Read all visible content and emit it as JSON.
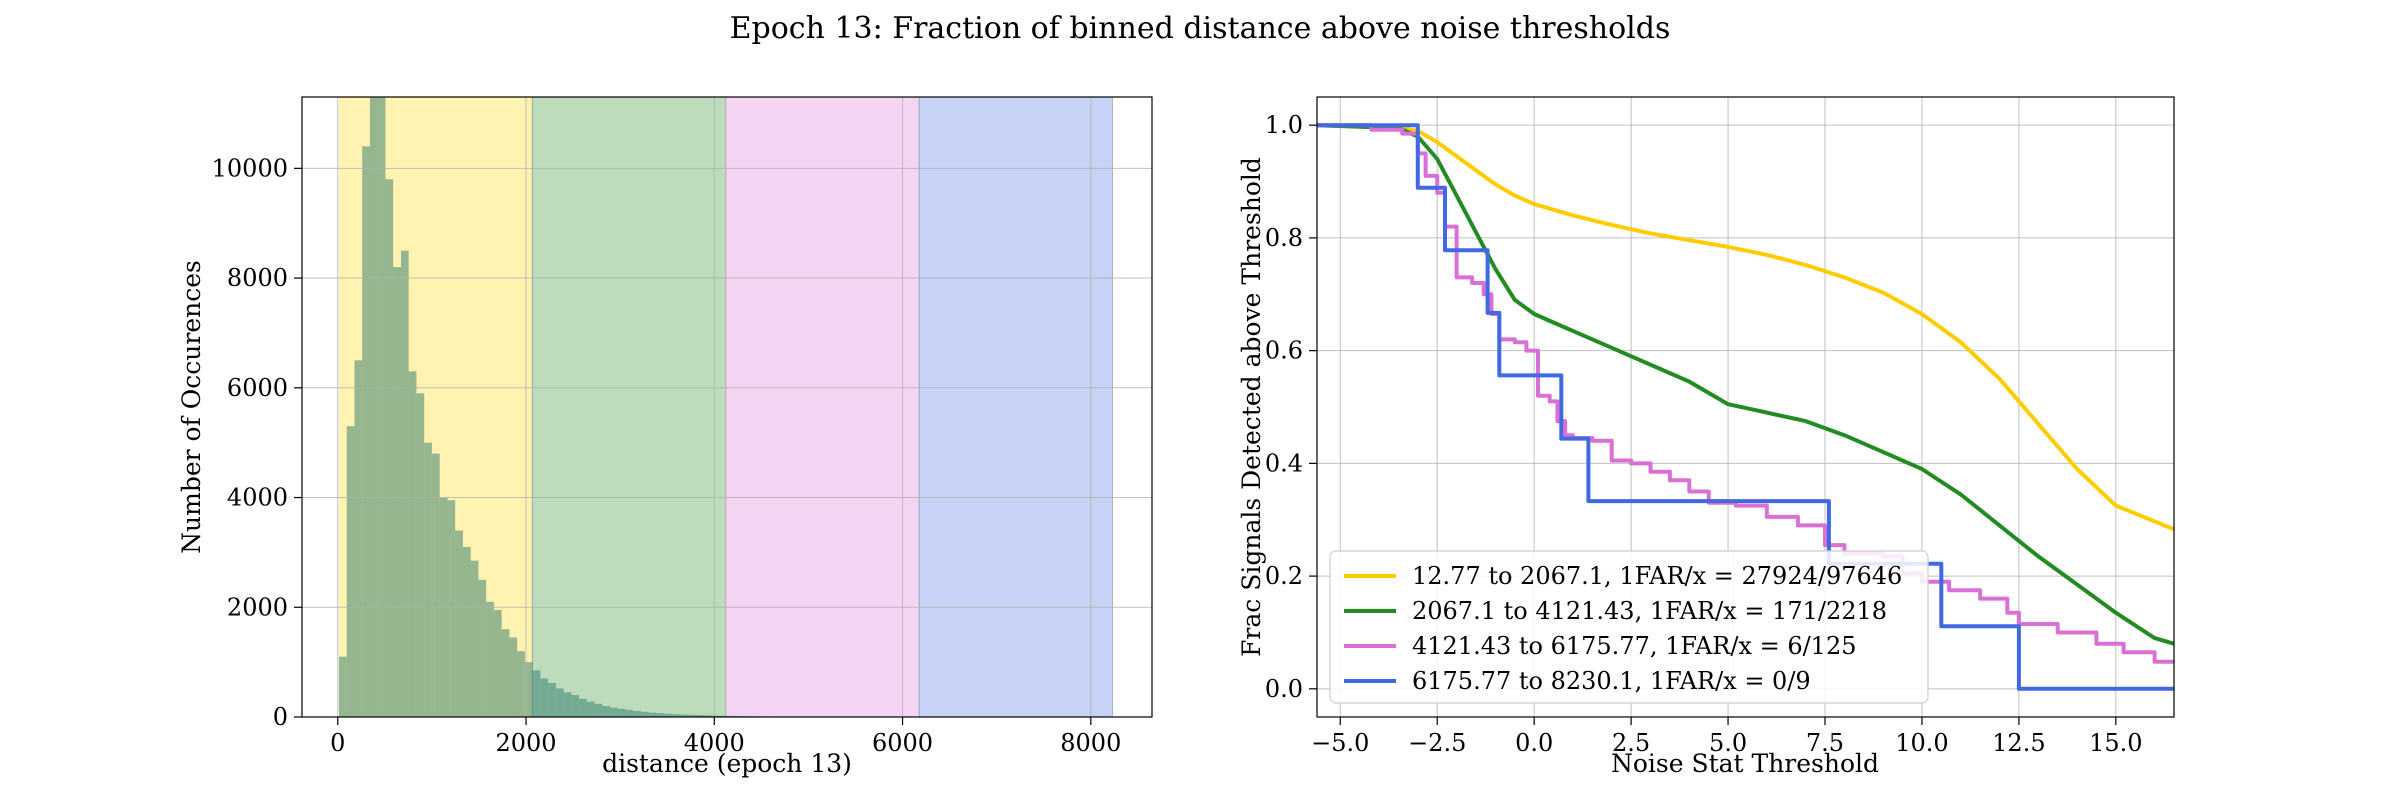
{
  "figure": {
    "title": "Epoch 13: Fraction of binned distance above noise thresholds"
  },
  "chart_data": [
    {
      "type": "bar",
      "xlabel": "distance (epoch 13)",
      "ylabel": "Number of Occurences",
      "xlim": [
        -380,
        8650
      ],
      "ylim": [
        0,
        11300
      ],
      "xticks": [
        0,
        2000,
        4000,
        6000,
        8000
      ],
      "yticks": [
        0,
        2000,
        4000,
        6000,
        8000,
        10000
      ],
      "grid": true,
      "bands": [
        {
          "from": 12.77,
          "to": 2067.1,
          "color": "#FFD700"
        },
        {
          "from": 2067.1,
          "to": 4121.43,
          "color": "#228B22"
        },
        {
          "from": 4121.43,
          "to": 6175.77,
          "color": "#DA70D6"
        },
        {
          "from": 6175.77,
          "to": 8230.1,
          "color": "#4169E1"
        }
      ],
      "histogram": {
        "bin_start": 12.77,
        "bin_width": 82.3,
        "color": "#2E7A6E",
        "counts": [
          1100,
          5300,
          6500,
          10400,
          11300,
          11300,
          9800,
          8200,
          8500,
          6300,
          5900,
          5000,
          4800,
          4000,
          3950,
          3400,
          3100,
          2850,
          2500,
          2100,
          1950,
          1600,
          1450,
          1200,
          1000,
          850,
          700,
          620,
          520,
          450,
          400,
          330,
          280,
          240,
          200,
          170,
          150,
          130,
          110,
          95,
          80,
          70,
          60,
          50,
          45,
          40,
          35,
          30,
          25,
          22,
          20,
          18,
          15,
          13,
          11,
          10,
          9,
          8,
          7,
          6,
          5,
          5,
          4,
          4,
          3,
          3,
          3,
          2,
          2,
          2
        ]
      }
    },
    {
      "type": "line",
      "xlabel": "Noise Stat Threshold",
      "ylabel": "Frac Signals Detected above Threshold",
      "xlim": [
        -5.6,
        16.5
      ],
      "ylim": [
        -0.05,
        1.05
      ],
      "xticks": [
        -5.0,
        -2.5,
        0.0,
        2.5,
        5.0,
        7.5,
        10.0,
        12.5,
        15.0
      ],
      "xtick_labels": [
        "−5.0",
        "−2.5",
        "0.0",
        "2.5",
        "5.0",
        "7.5",
        "10.0",
        "12.5",
        "15.0"
      ],
      "yticks": [
        0.0,
        0.2,
        0.4,
        0.6,
        0.8,
        1.0
      ],
      "ytick_labels": [
        "0.0",
        "0.2",
        "0.4",
        "0.6",
        "0.8",
        "1.0"
      ],
      "grid": true,
      "legend_position": "lower-left",
      "series": [
        {
          "name": "12.77 to 2067.1, 1FAR/x = 27924/97646",
          "color": "#FFCC00",
          "step": false,
          "points": [
            [
              -5.6,
              1.0
            ],
            [
              -3.5,
              0.995
            ],
            [
              -3.0,
              0.99
            ],
            [
              -2.5,
              0.97
            ],
            [
              -2.0,
              0.945
            ],
            [
              -1.5,
              0.92
            ],
            [
              -1.0,
              0.895
            ],
            [
              -0.5,
              0.875
            ],
            [
              0.0,
              0.86
            ],
            [
              0.5,
              0.85
            ],
            [
              1.0,
              0.84
            ],
            [
              2.0,
              0.823
            ],
            [
              3.0,
              0.808
            ],
            [
              4.0,
              0.796
            ],
            [
              5.0,
              0.784
            ],
            [
              6.0,
              0.77
            ],
            [
              7.0,
              0.752
            ],
            [
              8.0,
              0.73
            ],
            [
              9.0,
              0.703
            ],
            [
              10.0,
              0.665
            ],
            [
              11.0,
              0.615
            ],
            [
              12.0,
              0.55
            ],
            [
              13.0,
              0.47
            ],
            [
              14.0,
              0.39
            ],
            [
              15.0,
              0.325
            ],
            [
              16.5,
              0.283
            ]
          ]
        },
        {
          "name": "2067.1 to 4121.43, 1FAR/x = 171/2218",
          "color": "#228B22",
          "step": false,
          "points": [
            [
              -5.6,
              1.0
            ],
            [
              -3.5,
              0.995
            ],
            [
              -3.0,
              0.98
            ],
            [
              -2.5,
              0.94
            ],
            [
              -2.0,
              0.875
            ],
            [
              -1.5,
              0.81
            ],
            [
              -1.0,
              0.745
            ],
            [
              -0.5,
              0.69
            ],
            [
              0.0,
              0.665
            ],
            [
              0.5,
              0.65
            ],
            [
              1.0,
              0.635
            ],
            [
              2.0,
              0.605
            ],
            [
              3.0,
              0.575
            ],
            [
              4.0,
              0.545
            ],
            [
              5.0,
              0.505
            ],
            [
              6.0,
              0.49
            ],
            [
              7.0,
              0.475
            ],
            [
              8.0,
              0.45
            ],
            [
              9.0,
              0.42
            ],
            [
              10.0,
              0.39
            ],
            [
              11.0,
              0.345
            ],
            [
              12.0,
              0.29
            ],
            [
              13.0,
              0.235
            ],
            [
              14.0,
              0.185
            ],
            [
              15.0,
              0.135
            ],
            [
              16.0,
              0.09
            ],
            [
              16.5,
              0.08
            ]
          ]
        },
        {
          "name": "4121.43 to 6175.77, 1FAR/x = 6/125",
          "color": "#DA70D6",
          "step": true,
          "points": [
            [
              -5.6,
              1.0
            ],
            [
              -4.2,
              0.992
            ],
            [
              -3.4,
              0.985
            ],
            [
              -3.0,
              0.95
            ],
            [
              -2.8,
              0.91
            ],
            [
              -2.5,
              0.88
            ],
            [
              -2.3,
              0.82
            ],
            [
              -2.0,
              0.73
            ],
            [
              -1.6,
              0.72
            ],
            [
              -1.3,
              0.7
            ],
            [
              -1.1,
              0.665
            ],
            [
              -0.9,
              0.62
            ],
            [
              -0.5,
              0.615
            ],
            [
              -0.2,
              0.6
            ],
            [
              0.1,
              0.52
            ],
            [
              0.4,
              0.51
            ],
            [
              0.6,
              0.475
            ],
            [
              0.8,
              0.45
            ],
            [
              1.0,
              0.445
            ],
            [
              1.5,
              0.44
            ],
            [
              2.0,
              0.405
            ],
            [
              2.5,
              0.4
            ],
            [
              3.0,
              0.385
            ],
            [
              3.5,
              0.37
            ],
            [
              4.0,
              0.35
            ],
            [
              4.5,
              0.33
            ],
            [
              5.2,
              0.325
            ],
            [
              6.0,
              0.305
            ],
            [
              6.8,
              0.29
            ],
            [
              7.5,
              0.255
            ],
            [
              8.0,
              0.24
            ],
            [
              9.0,
              0.235
            ],
            [
              9.5,
              0.205
            ],
            [
              10.0,
              0.19
            ],
            [
              10.7,
              0.175
            ],
            [
              11.5,
              0.16
            ],
            [
              12.2,
              0.135
            ],
            [
              12.5,
              0.115
            ],
            [
              13.5,
              0.1
            ],
            [
              14.5,
              0.08
            ],
            [
              15.2,
              0.065
            ],
            [
              16.0,
              0.048
            ],
            [
              16.5,
              0.048
            ]
          ]
        },
        {
          "name": "6175.77 to 8230.1, 1FAR/x = 0/9",
          "color": "#4169E1",
          "step": true,
          "points": [
            [
              -5.6,
              1.0
            ],
            [
              -3.0,
              1.0
            ],
            [
              -3.0,
              0.889
            ],
            [
              -2.3,
              0.889
            ],
            [
              -2.3,
              0.778
            ],
            [
              -1.2,
              0.778
            ],
            [
              -1.2,
              0.667
            ],
            [
              -0.9,
              0.667
            ],
            [
              -0.9,
              0.556
            ],
            [
              0.7,
              0.556
            ],
            [
              0.7,
              0.444
            ],
            [
              1.4,
              0.444
            ],
            [
              1.4,
              0.333
            ],
            [
              7.6,
              0.333
            ],
            [
              7.6,
              0.222
            ],
            [
              10.5,
              0.222
            ],
            [
              10.5,
              0.111
            ],
            [
              12.5,
              0.111
            ],
            [
              12.5,
              0.0
            ],
            [
              16.5,
              0.0
            ]
          ]
        }
      ]
    }
  ]
}
